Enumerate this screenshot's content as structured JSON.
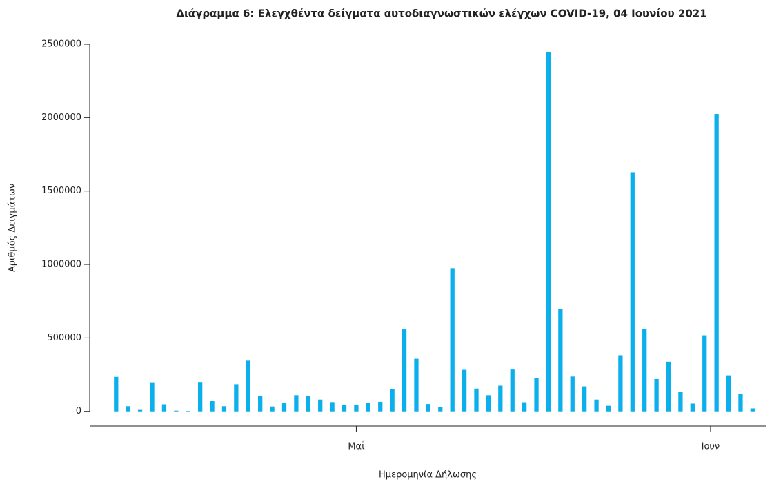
{
  "chart_data": {
    "type": "bar",
    "title": "Διάγραμμα 6: Ελεγχθέντα δείγματα αυτοδιαγνωστικών ελέγχων COVID-19, 04 Ιουνίου 2021",
    "x_label": "Ημερομηνία Δήλωσης",
    "y_label": "Αριθμός Δειγμάτων",
    "categories": [
      null,
      null,
      null,
      null,
      null,
      null,
      null,
      null,
      null,
      null,
      null,
      null,
      null,
      null,
      null,
      null,
      null,
      null,
      null,
      null,
      null,
      null,
      null,
      null,
      null,
      null,
      null,
      null,
      null,
      null,
      null,
      null,
      null,
      null,
      null,
      null,
      null,
      null,
      null,
      null,
      null,
      null,
      null,
      null,
      null,
      null,
      null,
      null,
      null,
      null,
      null,
      null,
      null,
      null
    ],
    "values": [
      235000,
      35000,
      10000,
      198000,
      48000,
      5000,
      3000,
      200000,
      72000,
      35000,
      185000,
      345000,
      105000,
      33000,
      55000,
      110000,
      105000,
      80000,
      63000,
      45000,
      42000,
      55000,
      65000,
      152000,
      558000,
      358000,
      50000,
      28000,
      975000,
      283000,
      155000,
      110000,
      175000,
      285000,
      62000,
      225000,
      2445000,
      697000,
      237000,
      170000,
      80000,
      38000,
      382000,
      1628000,
      560000,
      220000,
      338000,
      135000,
      53000,
      518000,
      2025000,
      245000,
      118000,
      20000
    ],
    "color": "#0aafec",
    "xlim": [
      -2.2,
      54.1
    ],
    "xticks": [
      {
        "value": 20,
        "label": "Μαΐ"
      },
      {
        "value": 49.5,
        "label": "Ιουν"
      }
    ],
    "ylim": [
      -100000,
      2500000
    ],
    "yticks": [
      0,
      500000,
      1000000,
      1500000,
      2000000,
      2500000
    ],
    "grid": false
  }
}
